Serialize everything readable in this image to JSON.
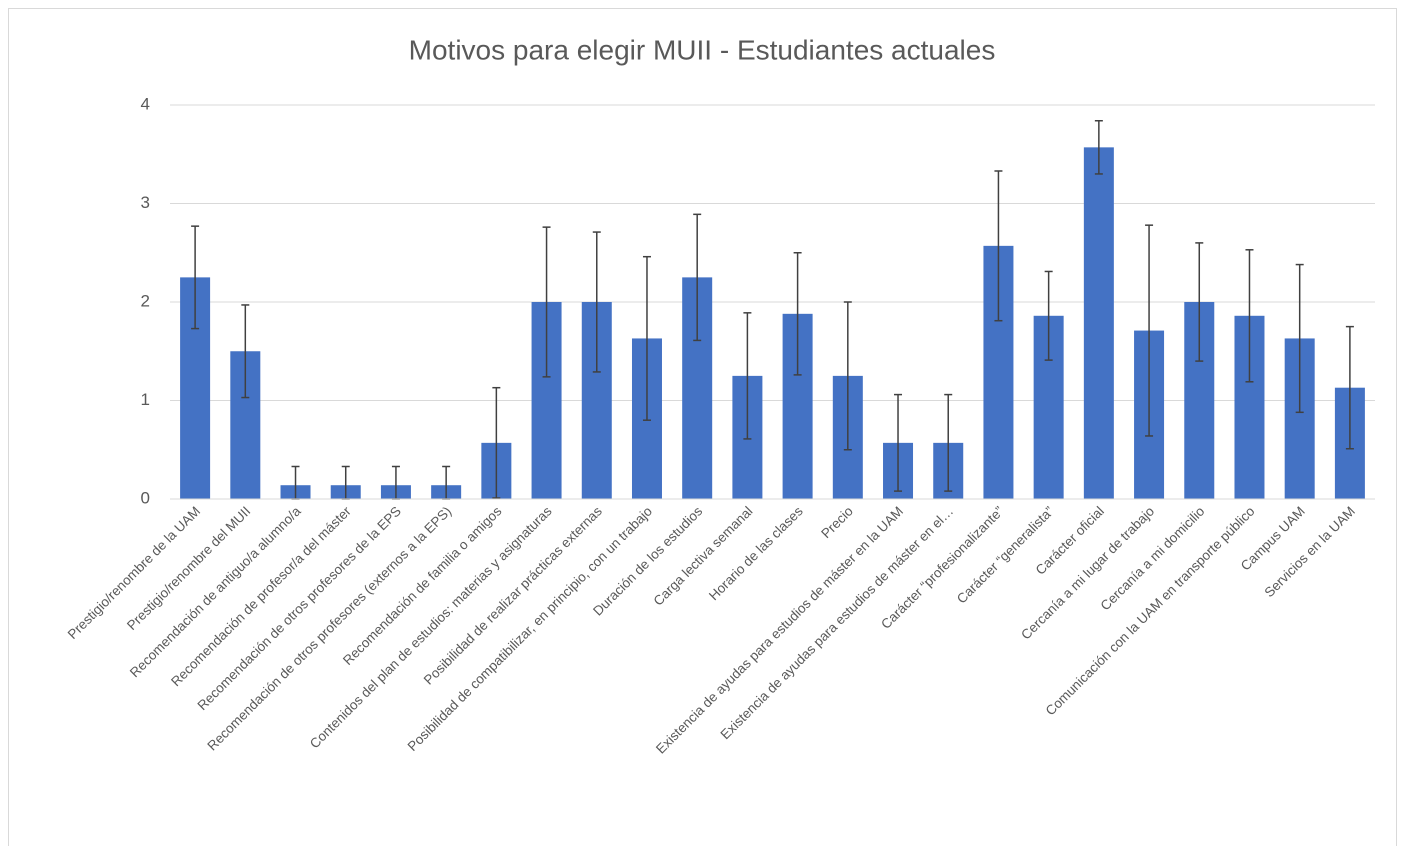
{
  "chart_data": {
    "type": "bar",
    "title": "Motivos para elegir MUII - Estudiantes actuales",
    "categories": [
      "Prestigio/renombre de la UAM",
      "Prestigio/renombre del MUII",
      "Recomendación de antiguo/a alumno/a",
      "Recomendación de profesor/a del máster",
      "Recomendación de otros profesores de la EPS",
      "Recomendación de otros profesores (externos a la EPS)",
      "Recomendación de familia o amigos",
      "Contenidos del plan de estudios: materias y asignaturas",
      "Posibilidad de realizar prácticas externas",
      "Posibilidad de compatibilizar, en principio, con un trabajo",
      "Duración de los estudios",
      "Carga lectiva semanal",
      "Horario de las clases",
      "Precio",
      "Existencia de ayudas para estudios de máster en la UAM",
      "Existencia de ayudas para estudios de máster en el…",
      "Carácter “profesionalizante”",
      "Carácter “generalista”",
      "Carácter oficial",
      "Cercanía a mi lugar de trabajo",
      "Cercanía a mi domicilio",
      "Comunicación con la UAM en transporte público",
      "Campus UAM",
      "Servicios en la UAM"
    ],
    "values": [
      2.25,
      1.5,
      0.14,
      0.14,
      0.14,
      0.14,
      0.57,
      2.0,
      2.0,
      1.63,
      2.25,
      1.25,
      1.88,
      1.25,
      0.57,
      0.57,
      2.57,
      1.86,
      3.57,
      1.71,
      2.0,
      1.86,
      1.63,
      1.13
    ],
    "errors": [
      0.52,
      0.47,
      0.19,
      0.19,
      0.19,
      0.19,
      0.56,
      0.76,
      0.71,
      0.83,
      0.64,
      0.64,
      0.62,
      0.75,
      0.49,
      0.49,
      0.76,
      0.45,
      0.27,
      1.07,
      0.6,
      0.67,
      0.75,
      0.62
    ],
    "color": "#4472c4",
    "error_color": "#404040",
    "ylim": [
      0,
      4
    ],
    "yticks": [
      0,
      1,
      2,
      3,
      4
    ],
    "grid": true
  }
}
